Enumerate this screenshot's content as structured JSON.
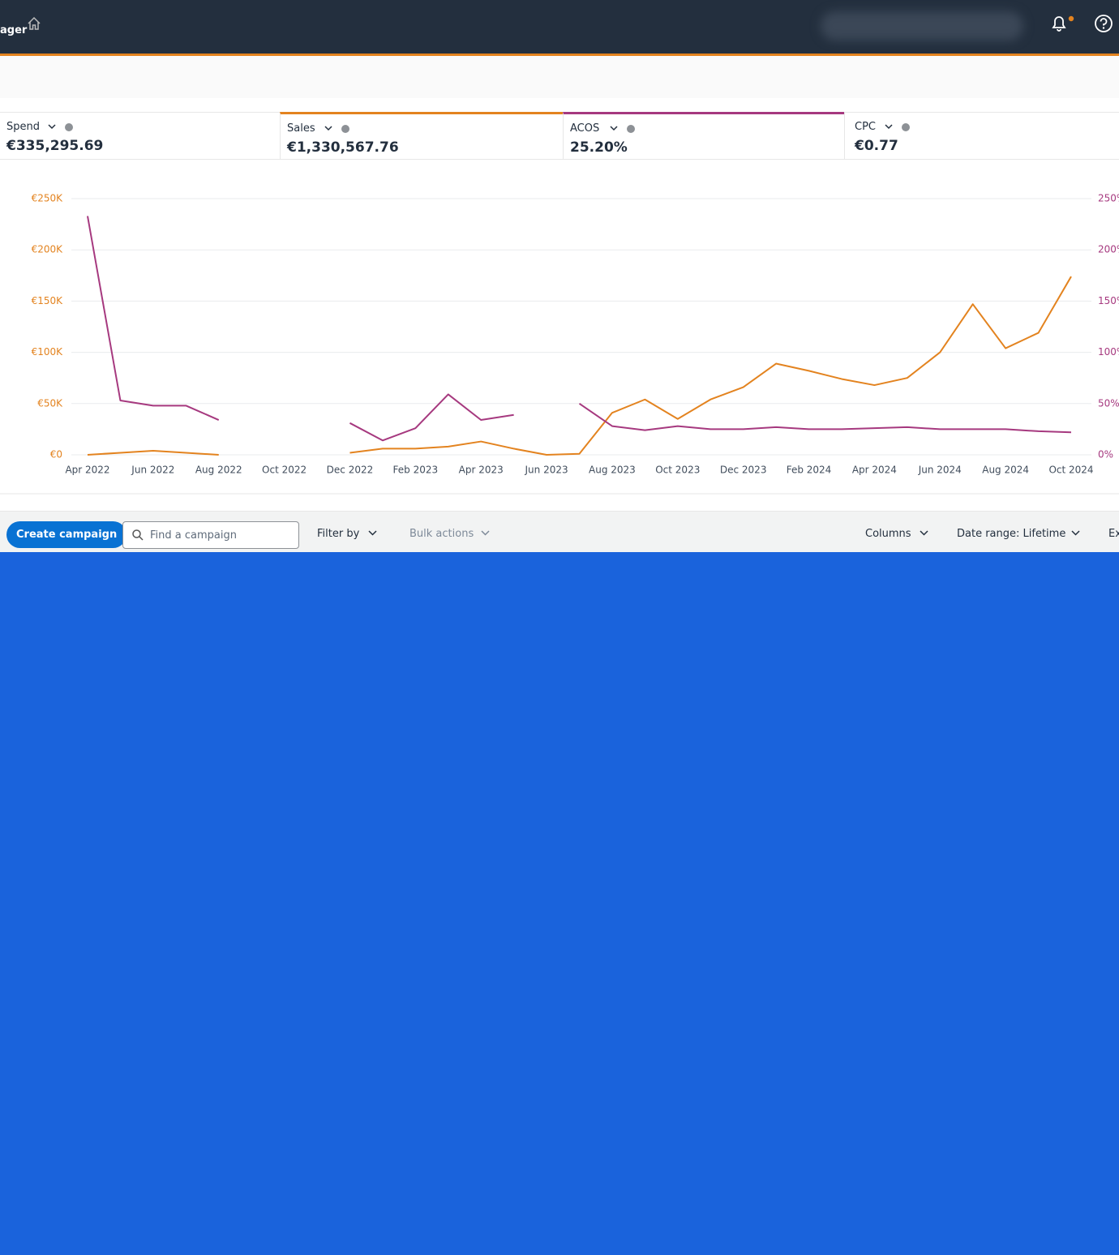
{
  "header": {
    "app_title": "ager"
  },
  "metrics": [
    {
      "label": "Spend",
      "value": "€335,295.69"
    },
    {
      "value": "€1,330,567.76"
    },
    {
      "value": "25.20%"
    },
    {
      "label": "CPC",
      "value": "€0.77"
    }
  ],
  "chart_data": {
    "type": "line",
    "categories": [
      "Apr 2022",
      null,
      "Jun 2022",
      null,
      "Aug 2022",
      null,
      "Oct 2022",
      null,
      "Dec 2022",
      null,
      "Feb 2023",
      null,
      "Apr 2023",
      null,
      "Jun 2023",
      null,
      "Aug 2023",
      null,
      "Oct 2023",
      null,
      "Dec 2023",
      null,
      "Feb 2024",
      null,
      "Apr 2024",
      null,
      "Jun 2024",
      null,
      "Aug 2024",
      null,
      "Oct 2024"
    ],
    "series": [
      {
        "name": "Sales",
        "color": "#e3831f",
        "values": [
          0,
          2000,
          4000,
          2000,
          0,
          null,
          null,
          null,
          2000,
          6000,
          6000,
          8000,
          13000,
          6000,
          0,
          1000,
          41000,
          54000,
          35000,
          54000,
          66000,
          89000,
          82000,
          74000,
          68000,
          75000,
          100000,
          147000,
          104000,
          119000,
          174000
        ]
      },
      {
        "name": "ACOS",
        "color": "#a6397f",
        "axis": "y2",
        "values": [
          233,
          53,
          48,
          48,
          34,
          null,
          null,
          null,
          31,
          14,
          26,
          59,
          34,
          39,
          null,
          50,
          28,
          24,
          28,
          25,
          25,
          27,
          25,
          25,
          26,
          27,
          25,
          25,
          25,
          23,
          22
        ]
      }
    ],
    "ylim": [
      0,
      250000
    ],
    "yticks": [
      {
        "value": 0,
        "label": "€0"
      },
      {
        "value": 50000,
        "label": "€50K"
      },
      {
        "value": 100000,
        "label": "€100K"
      },
      {
        "value": 150000,
        "label": "€150K"
      },
      {
        "value": 200000,
        "label": "€200K"
      },
      {
        "value": 250000,
        "label": "€250K"
      }
    ],
    "y2lim": [
      0,
      250
    ],
    "y2ticks": [
      {
        "value": 0,
        "label": "0%"
      },
      {
        "value": 50,
        "label": "50%"
      },
      {
        "value": 100,
        "label": "100%"
      },
      {
        "value": 150,
        "label": "150%"
      },
      {
        "value": 200,
        "label": "200%"
      },
      {
        "value": 250,
        "label": "250%"
      }
    ],
    "grid": true
  },
  "toolbar": {
    "create": "Create campaign",
    "search_placeholder": "Find a campaign",
    "filter": "Filter by",
    "bulk": "Bulk actions",
    "columns": "Columns",
    "date_range": "Date range: Lifetime",
    "export": "Ex"
  }
}
